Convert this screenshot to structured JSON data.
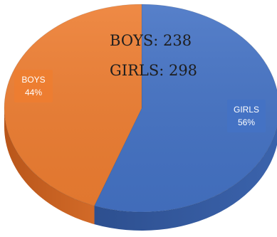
{
  "chart_data": {
    "type": "pie",
    "title": "",
    "categories": [
      "GIRLS",
      "BOYS"
    ],
    "values": [
      298,
      238
    ],
    "percent_labels": [
      "56%",
      "44%"
    ],
    "colors": [
      "#4472c4",
      "#ed7d31"
    ],
    "style": "3d",
    "annotations": [
      "BOYS: 238",
      "GIRLS: 298"
    ]
  }
}
